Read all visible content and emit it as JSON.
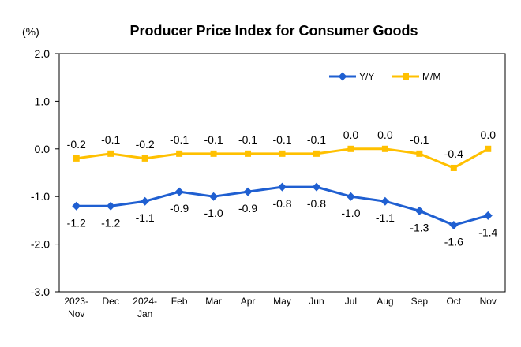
{
  "chart_data": {
    "type": "line",
    "title": "Producer Price Index for Consumer Goods",
    "unit": "(%)",
    "categories": [
      [
        "2023-",
        "Nov"
      ],
      [
        "Dec"
      ],
      [
        "2024-",
        "Jan"
      ],
      [
        "Feb"
      ],
      [
        "Mar"
      ],
      [
        "Apr"
      ],
      [
        "May"
      ],
      [
        "Jun"
      ],
      [
        "Jul"
      ],
      [
        "Aug"
      ],
      [
        "Sep"
      ],
      [
        "Oct"
      ],
      [
        "Nov"
      ]
    ],
    "series": [
      {
        "name": "Y/Y",
        "color": "#1F5FD1",
        "marker": "diamond",
        "values": [
          -1.2,
          -1.2,
          -1.1,
          -0.9,
          -1.0,
          -0.9,
          -0.8,
          -0.8,
          -1.0,
          -1.1,
          -1.3,
          -1.6,
          -1.4
        ],
        "labels": [
          "-1.2",
          "-1.2",
          "-1.1",
          "-0.9",
          "-1.0",
          "-0.9",
          "-0.8",
          "-0.8",
          "-1.0",
          "-1.1",
          "-1.3",
          "-1.6",
          "-1.4"
        ]
      },
      {
        "name": "M/M",
        "color": "#FFC000",
        "marker": "square",
        "values": [
          -0.2,
          -0.1,
          -0.2,
          -0.1,
          -0.1,
          -0.1,
          -0.1,
          -0.1,
          0.0,
          0.0,
          -0.1,
          -0.4,
          0.0
        ],
        "labels": [
          "-0.2",
          "-0.1",
          "-0.2",
          "-0.1",
          "-0.1",
          "-0.1",
          "-0.1",
          "-0.1",
          "0.0",
          "0.0",
          "-0.1",
          "-0.4",
          "0.0"
        ]
      }
    ],
    "yticks": [
      "2.0",
      "1.0",
      "0.0",
      "-1.0",
      "-2.0",
      "-3.0"
    ],
    "ylim": [
      -3.0,
      2.0
    ],
    "grid": false,
    "legend_position": "top-right"
  }
}
